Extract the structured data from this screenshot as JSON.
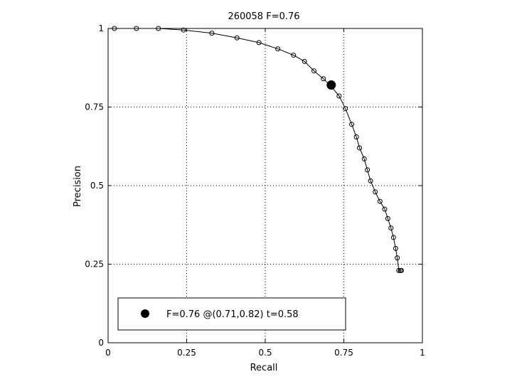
{
  "chart_data": {
    "type": "line",
    "title": "260058 F=0.76",
    "xlabel": "Recall",
    "ylabel": "Precision",
    "xlim": [
      0,
      1
    ],
    "ylim": [
      0,
      1
    ],
    "xticks": [
      0,
      0.25,
      0.5,
      0.75,
      1
    ],
    "yticks": [
      0,
      0.25,
      0.5,
      0.75,
      1
    ],
    "xtick_labels": [
      "0",
      "0.25",
      "0.5",
      "0.75",
      "1"
    ],
    "ytick_labels": [
      "0",
      "0.25",
      "0.5",
      "0.75",
      "1"
    ],
    "grid": true,
    "legend_position": "bottom-left",
    "series": [
      {
        "x": [
          0.02,
          0.09,
          0.16,
          0.24,
          0.33,
          0.41,
          0.48,
          0.54,
          0.59,
          0.625,
          0.655,
          0.685,
          0.71,
          0.735,
          0.755,
          0.775,
          0.79,
          0.8,
          0.815,
          0.825,
          0.835,
          0.85,
          0.865,
          0.88,
          0.89,
          0.9,
          0.908,
          0.915,
          0.92,
          0.925,
          0.93,
          0.933
        ],
        "y": [
          1.0,
          1.0,
          1.0,
          0.995,
          0.985,
          0.97,
          0.955,
          0.935,
          0.915,
          0.895,
          0.865,
          0.84,
          0.815,
          0.785,
          0.745,
          0.695,
          0.655,
          0.62,
          0.585,
          0.55,
          0.515,
          0.48,
          0.45,
          0.425,
          0.395,
          0.365,
          0.335,
          0.3,
          0.27,
          0.23,
          0.23,
          0.23
        ]
      }
    ],
    "highlight_point": {
      "x": 0.71,
      "y": 0.82
    },
    "legend_label": "F=0.76 @(0.71,0.82) t=0.58"
  }
}
